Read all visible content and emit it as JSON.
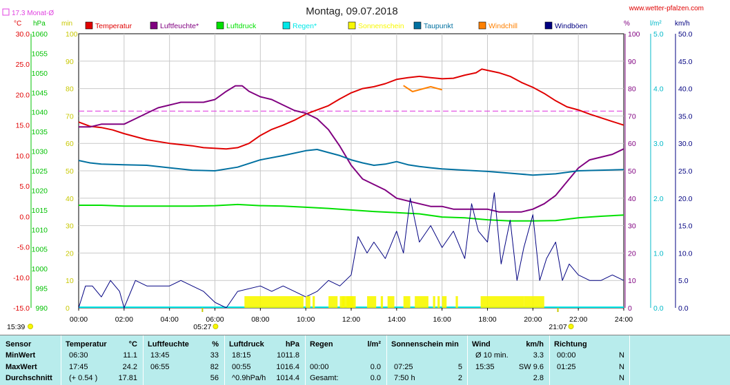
{
  "header": {
    "title": "Montag, 09.07.2018",
    "website": "www.wetter-pfalzen.com",
    "monthly_avg_label": "17.3 Monat-Ø"
  },
  "axes": {
    "unit_celsius": "°C",
    "unit_hpa": "hPa",
    "unit_min": "min",
    "unit_percent": "%",
    "unit_lm2": "l/m²",
    "unit_kmh": "km/h",
    "temp_ticks": [
      "30.0",
      "25.0",
      "20.0",
      "15.0",
      "10.0",
      "5.0",
      "0.0",
      "-5.0",
      "-10.0",
      "-15.0"
    ],
    "hpa_ticks": [
      "1060",
      "1055",
      "1050",
      "1045",
      "1040",
      "1035",
      "1030",
      "1025",
      "1020",
      "1015",
      "1010",
      "1005",
      "1000",
      "995",
      "990"
    ],
    "min_ticks": [
      "100",
      "90",
      "80",
      "70",
      "60",
      "50",
      "40",
      "30",
      "20",
      "10",
      "0"
    ],
    "percent_ticks": [
      "100",
      "90",
      "80",
      "70",
      "60",
      "50",
      "40",
      "30",
      "20",
      "10",
      "0"
    ],
    "rain_ticks": [
      "5.0",
      "4.0",
      "3.0",
      "2.0",
      "1.0",
      "0.0"
    ],
    "wind_ticks": [
      "50.0",
      "45.0",
      "40.0",
      "35.0",
      "30.0",
      "25.0",
      "20.0",
      "15.0",
      "10.0",
      "5.0",
      "0.0"
    ],
    "time_ticks": [
      "00:00",
      "02:00",
      "04:00",
      "06:00",
      "08:00",
      "10:00",
      "12:00",
      "14:00",
      "16:00",
      "18:00",
      "20:00",
      "22:00",
      "24:00"
    ],
    "sunrise": "05:27",
    "sunset": "21:07",
    "now_time": "15:39"
  },
  "legend": [
    {
      "label": "Temperatur",
      "color": "#e00000"
    },
    {
      "label": "Luftfeuchte*",
      "color": "#800080"
    },
    {
      "label": "Luftdruck",
      "color": "#00e000"
    },
    {
      "label": "Regen*",
      "color": "#00e8e8"
    },
    {
      "label": "Sonnenschein",
      "color": "#f8f800"
    },
    {
      "label": "Taupunkt",
      "color": "#0070a0"
    },
    {
      "label": "Windchill",
      "color": "#ff8000"
    },
    {
      "label": "Windböen",
      "color": "#000080"
    }
  ],
  "chart_data": {
    "type": "line",
    "title": "Montag, 09.07.2018",
    "x_unit": "hour of day",
    "xlim": [
      0,
      24
    ],
    "reference_line": {
      "name": "17.3 Monat-Ø",
      "value": 17.3,
      "axis": "°C",
      "color": "#e040e0"
    },
    "series": [
      {
        "name": "Temperatur",
        "axis": "°C",
        "color": "#e00000",
        "points": [
          [
            0,
            15.5
          ],
          [
            0.5,
            14.8
          ],
          [
            1,
            14.6
          ],
          [
            1.5,
            14.2
          ],
          [
            2,
            13.6
          ],
          [
            3,
            12.6
          ],
          [
            4,
            12.0
          ],
          [
            5,
            11.6
          ],
          [
            5.5,
            11.3
          ],
          [
            6.5,
            11.1
          ],
          [
            7,
            11.3
          ],
          [
            7.5,
            12.0
          ],
          [
            8,
            13.3
          ],
          [
            8.5,
            14.3
          ],
          [
            9,
            15.0
          ],
          [
            9.5,
            15.8
          ],
          [
            10,
            16.8
          ],
          [
            10.5,
            17.5
          ],
          [
            11,
            18.2
          ],
          [
            11.5,
            19.3
          ],
          [
            12,
            20.3
          ],
          [
            12.5,
            21.0
          ],
          [
            13,
            21.3
          ],
          [
            13.5,
            21.8
          ],
          [
            14,
            22.5
          ],
          [
            14.5,
            22.8
          ],
          [
            15,
            23.0
          ],
          [
            15.5,
            22.8
          ],
          [
            16,
            22.6
          ],
          [
            16.5,
            22.7
          ],
          [
            17,
            23.2
          ],
          [
            17.5,
            23.6
          ],
          [
            17.75,
            24.2
          ],
          [
            18,
            24.0
          ],
          [
            18.5,
            23.6
          ],
          [
            19,
            23.0
          ],
          [
            19.5,
            22.0
          ],
          [
            20,
            21.2
          ],
          [
            20.5,
            20.2
          ],
          [
            21,
            19.0
          ],
          [
            21.5,
            18.0
          ],
          [
            22,
            17.5
          ],
          [
            22.5,
            16.8
          ],
          [
            23,
            16.2
          ],
          [
            23.5,
            15.6
          ],
          [
            24,
            15.0
          ]
        ]
      },
      {
        "name": "Luftfeuchte*",
        "axis": "%",
        "color": "#800080",
        "points": [
          [
            0,
            66
          ],
          [
            0.5,
            66
          ],
          [
            1,
            67
          ],
          [
            2,
            67
          ],
          [
            2.5,
            69
          ],
          [
            3,
            71
          ],
          [
            3.5,
            73
          ],
          [
            4,
            74
          ],
          [
            4.5,
            75
          ],
          [
            5,
            75
          ],
          [
            5.5,
            75
          ],
          [
            6,
            76
          ],
          [
            6.5,
            79
          ],
          [
            6.9,
            81
          ],
          [
            7.2,
            81
          ],
          [
            7.5,
            79
          ],
          [
            8,
            77
          ],
          [
            8.5,
            76
          ],
          [
            9,
            74
          ],
          [
            9.5,
            72
          ],
          [
            10,
            71
          ],
          [
            10.5,
            69
          ],
          [
            11,
            65
          ],
          [
            11.5,
            59
          ],
          [
            12,
            52
          ],
          [
            12.5,
            47
          ],
          [
            13,
            45
          ],
          [
            13.5,
            43
          ],
          [
            14,
            40
          ],
          [
            14.5,
            39
          ],
          [
            15,
            38
          ],
          [
            15.5,
            37
          ],
          [
            16,
            37
          ],
          [
            16.5,
            36
          ],
          [
            17,
            36
          ],
          [
            17.5,
            36
          ],
          [
            18,
            36
          ],
          [
            18.5,
            35
          ],
          [
            19,
            35
          ],
          [
            19.5,
            35
          ],
          [
            20,
            36
          ],
          [
            20.5,
            38
          ],
          [
            21,
            41
          ],
          [
            21.5,
            46
          ],
          [
            22,
            51
          ],
          [
            22.5,
            54
          ],
          [
            23,
            55
          ],
          [
            23.5,
            56
          ],
          [
            24,
            58
          ]
        ]
      },
      {
        "name": "Luftdruck",
        "axis": "hPa",
        "color": "#00e000",
        "points": [
          [
            0,
            1016.2
          ],
          [
            1,
            1016.2
          ],
          [
            2,
            1016.0
          ],
          [
            3,
            1016.0
          ],
          [
            4,
            1016.0
          ],
          [
            5,
            1016.0
          ],
          [
            6,
            1016.1
          ],
          [
            7,
            1016.4
          ],
          [
            8,
            1016.1
          ],
          [
            9,
            1016.0
          ],
          [
            10,
            1015.7
          ],
          [
            11,
            1015.4
          ],
          [
            12,
            1015.0
          ],
          [
            13,
            1014.6
          ],
          [
            14,
            1014.3
          ],
          [
            15,
            1014.0
          ],
          [
            16,
            1013.2
          ],
          [
            17,
            1013.0
          ],
          [
            18,
            1012.5
          ],
          [
            19,
            1012.2
          ],
          [
            20,
            1012.2
          ],
          [
            21,
            1012.3
          ],
          [
            22,
            1013.0
          ],
          [
            23,
            1013.4
          ],
          [
            24,
            1013.7
          ]
        ]
      },
      {
        "name": "Taupunkt",
        "axis": "°C",
        "color": "#0070a0",
        "points": [
          [
            0,
            9.2
          ],
          [
            0.5,
            8.8
          ],
          [
            1,
            8.6
          ],
          [
            2,
            8.5
          ],
          [
            3,
            8.4
          ],
          [
            4,
            8.0
          ],
          [
            5,
            7.6
          ],
          [
            6,
            7.5
          ],
          [
            7,
            8.1
          ],
          [
            8,
            9.3
          ],
          [
            9,
            10.0
          ],
          [
            10,
            10.8
          ],
          [
            10.5,
            11.0
          ],
          [
            11,
            10.5
          ],
          [
            11.5,
            10.0
          ],
          [
            12,
            9.3
          ],
          [
            12.5,
            8.8
          ],
          [
            13,
            8.4
          ],
          [
            13.5,
            8.6
          ],
          [
            14,
            9.0
          ],
          [
            14.5,
            8.5
          ],
          [
            15,
            8.2
          ],
          [
            15.5,
            8.0
          ],
          [
            16,
            7.8
          ],
          [
            17,
            7.6
          ],
          [
            18,
            7.4
          ],
          [
            19,
            7.1
          ],
          [
            20,
            6.8
          ],
          [
            21,
            7.0
          ],
          [
            22,
            7.5
          ],
          [
            23,
            7.6
          ],
          [
            24,
            7.7
          ]
        ]
      },
      {
        "name": "Windböen",
        "axis": "km/h",
        "color": "#000080",
        "points": [
          [
            0,
            0
          ],
          [
            0.3,
            4
          ],
          [
            0.6,
            4
          ],
          [
            1,
            2
          ],
          [
            1.4,
            5
          ],
          [
            1.8,
            3
          ],
          [
            2,
            0
          ],
          [
            2.5,
            5
          ],
          [
            3,
            4
          ],
          [
            4,
            4
          ],
          [
            4.5,
            5
          ],
          [
            5,
            4
          ],
          [
            5.5,
            3
          ],
          [
            6,
            1
          ],
          [
            6.5,
            0
          ],
          [
            7,
            3
          ],
          [
            8,
            4
          ],
          [
            8.5,
            3
          ],
          [
            9,
            4
          ],
          [
            9.5,
            3
          ],
          [
            10,
            2
          ],
          [
            10.5,
            3
          ],
          [
            11,
            5
          ],
          [
            11.5,
            4
          ],
          [
            12,
            6
          ],
          [
            12.3,
            13
          ],
          [
            12.7,
            10
          ],
          [
            13,
            12
          ],
          [
            13.5,
            9
          ],
          [
            14,
            14
          ],
          [
            14.3,
            10
          ],
          [
            14.6,
            20
          ],
          [
            15,
            12
          ],
          [
            15.5,
            15
          ],
          [
            16,
            11
          ],
          [
            16.5,
            14
          ],
          [
            17,
            9
          ],
          [
            17.3,
            19
          ],
          [
            17.6,
            14
          ],
          [
            18,
            12
          ],
          [
            18.3,
            21
          ],
          [
            18.6,
            8
          ],
          [
            19,
            16
          ],
          [
            19.3,
            5
          ],
          [
            19.6,
            11
          ],
          [
            20,
            17
          ],
          [
            20.3,
            5
          ],
          [
            20.6,
            9
          ],
          [
            21,
            12
          ],
          [
            21.3,
            5
          ],
          [
            21.6,
            8
          ],
          [
            22,
            6
          ],
          [
            22.5,
            5
          ],
          [
            23,
            5
          ],
          [
            23.5,
            6
          ],
          [
            24,
            5
          ]
        ]
      },
      {
        "name": "Windchill",
        "axis": "°C",
        "color": "#ff8000",
        "points": [
          [
            14.3,
            21.5
          ],
          [
            14.7,
            20.5
          ],
          [
            15.5,
            21.3
          ],
          [
            16,
            20.8
          ]
        ]
      },
      {
        "name": "Sonnenschein",
        "axis": "min",
        "color": "#f8f800",
        "intervals": [
          [
            7.3,
            9.9
          ],
          [
            10.0,
            10.2
          ],
          [
            10.3,
            10.4
          ],
          [
            11.0,
            11.4
          ],
          [
            11.5,
            12.1
          ],
          [
            11.9,
            12.2
          ],
          [
            11.8,
            11.9
          ],
          [
            11.6,
            11.7
          ],
          [
            12.7,
            13.1
          ],
          [
            13.6,
            13.9
          ],
          [
            13.3,
            13.4
          ],
          [
            14.3,
            14.6
          ],
          [
            14.8,
            15.4
          ],
          [
            15.8,
            15.9
          ],
          [
            15.6,
            15.7
          ],
          [
            16.0,
            16.2
          ],
          [
            16.6,
            16.7
          ],
          [
            17.7,
            19.6
          ],
          [
            19.6,
            20.5
          ]
        ]
      }
    ]
  },
  "stats": {
    "headers": {
      "sensor": "Sensor",
      "temp": "Temperatur",
      "temp_unit": "°C",
      "hum": "Luftfeuchte",
      "hum_unit": "%",
      "press": "Luftdruck",
      "press_unit": "hPa",
      "rain": "Regen",
      "rain_unit": "l/m²",
      "sun": "Sonnenschein min",
      "wind": "Wind",
      "wind_unit": "km/h",
      "dir": "Richtung"
    },
    "rows": [
      {
        "label": "MinWert",
        "temp_time": "06:30",
        "temp_val": "11.1",
        "hum_time": "13:45",
        "hum_val": "33",
        "press_time": "18:15",
        "press_val": "1011.8",
        "rain_time": "",
        "rain_val": "",
        "sun_time": "",
        "sun_val": "",
        "wind_time": "Ø 10 min.",
        "wind_val": "3.3",
        "dir_time": "00:00",
        "dir_val": "N"
      },
      {
        "label": "MaxWert",
        "temp_time": "17:45",
        "temp_val": "24.2",
        "hum_time": "06:55",
        "hum_val": "82",
        "press_time": "00:55",
        "press_val": "1016.4",
        "rain_time": "00:00",
        "rain_val": "0.0",
        "sun_time": "07:25",
        "sun_val": "5",
        "wind_time": "15:35",
        "wind_val": "SW 9.6",
        "dir_time": "01:25",
        "dir_val": "N"
      },
      {
        "label": "Durchschnitt",
        "temp_time": "(+ 0.54 )",
        "temp_val": "17.81",
        "hum_time": "",
        "hum_val": "56",
        "press_time": "^0.9hPa/h",
        "press_val": "1014.4",
        "rain_time": "Gesamt:",
        "rain_val": "0.0",
        "sun_time": "7:50 h",
        "sun_val": "2",
        "wind_time": "",
        "wind_val": "2.8",
        "dir_time": "",
        "dir_val": "N"
      }
    ]
  }
}
